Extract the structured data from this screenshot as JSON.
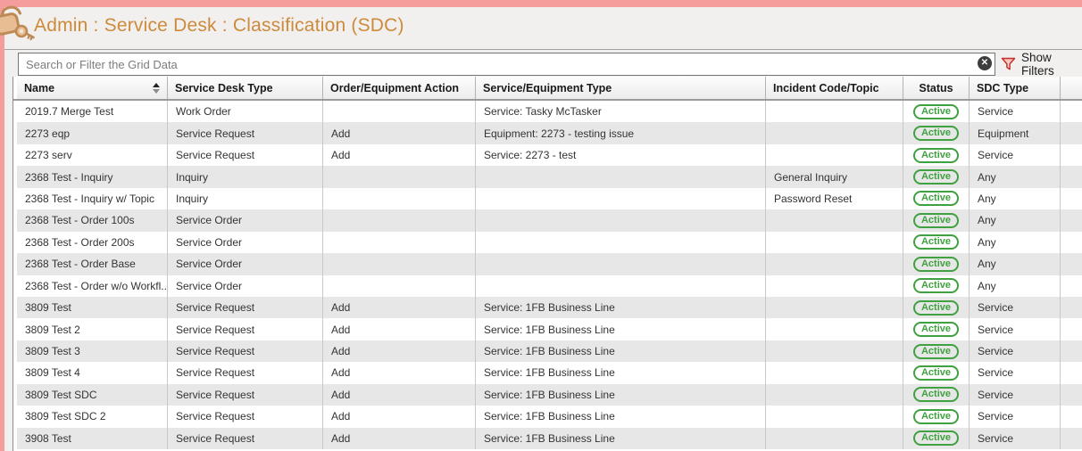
{
  "app": {
    "title": "Admin : Service Desk : Classification (SDC)"
  },
  "search": {
    "placeholder": "Search or Filter the Grid Data",
    "value": "",
    "clear_glyph": "✕",
    "show_filters_label": "Show Filters"
  },
  "table": {
    "columns": [
      {
        "key": "name",
        "label": "Name",
        "sorted": "asc"
      },
      {
        "key": "service_desk_type",
        "label": "Service Desk Type"
      },
      {
        "key": "order_equipment_action",
        "label": "Order/Equipment Action"
      },
      {
        "key": "service_equipment_type",
        "label": "Service/Equipment Type"
      },
      {
        "key": "incident_code_topic",
        "label": "Incident Code/Topic"
      },
      {
        "key": "status",
        "label": "Status"
      },
      {
        "key": "sdc_type",
        "label": "SDC Type"
      }
    ],
    "rows": [
      {
        "name": "2019.7 Merge Test",
        "service_desk_type": "Work Order",
        "order_equipment_action": "",
        "service_equipment_type": "Service: Tasky McTasker",
        "incident_code_topic": "",
        "status": "Active",
        "sdc_type": "Service"
      },
      {
        "name": "2273 eqp",
        "service_desk_type": "Service Request",
        "order_equipment_action": "Add",
        "service_equipment_type": "Equipment: 2273 - testing issue",
        "incident_code_topic": "",
        "status": "Active",
        "sdc_type": "Equipment"
      },
      {
        "name": "2273 serv",
        "service_desk_type": "Service Request",
        "order_equipment_action": "Add",
        "service_equipment_type": "Service: 2273 - test",
        "incident_code_topic": "",
        "status": "Active",
        "sdc_type": "Service"
      },
      {
        "name": "2368 Test - Inquiry",
        "service_desk_type": "Inquiry",
        "order_equipment_action": "",
        "service_equipment_type": "",
        "incident_code_topic": "General Inquiry",
        "status": "Active",
        "sdc_type": "Any"
      },
      {
        "name": "2368 Test - Inquiry w/ Topic",
        "service_desk_type": "Inquiry",
        "order_equipment_action": "",
        "service_equipment_type": "",
        "incident_code_topic": "Password Reset",
        "status": "Active",
        "sdc_type": "Any"
      },
      {
        "name": "2368 Test - Order 100s",
        "service_desk_type": "Service Order",
        "order_equipment_action": "",
        "service_equipment_type": "",
        "incident_code_topic": "",
        "status": "Active",
        "sdc_type": "Any"
      },
      {
        "name": "2368 Test - Order 200s",
        "service_desk_type": "Service Order",
        "order_equipment_action": "",
        "service_equipment_type": "",
        "incident_code_topic": "",
        "status": "Active",
        "sdc_type": "Any"
      },
      {
        "name": "2368 Test - Order Base",
        "service_desk_type": "Service Order",
        "order_equipment_action": "",
        "service_equipment_type": "",
        "incident_code_topic": "",
        "status": "Active",
        "sdc_type": "Any"
      },
      {
        "name": "2368 Test - Order w/o Workfl...",
        "service_desk_type": "Service Order",
        "order_equipment_action": "",
        "service_equipment_type": "",
        "incident_code_topic": "",
        "status": "Active",
        "sdc_type": "Any"
      },
      {
        "name": "3809 Test",
        "service_desk_type": "Service Request",
        "order_equipment_action": "Add",
        "service_equipment_type": "Service: 1FB Business Line",
        "incident_code_topic": "",
        "status": "Active",
        "sdc_type": "Service"
      },
      {
        "name": "3809 Test 2",
        "service_desk_type": "Service Request",
        "order_equipment_action": "Add",
        "service_equipment_type": "Service: 1FB Business Line",
        "incident_code_topic": "",
        "status": "Active",
        "sdc_type": "Service"
      },
      {
        "name": "3809 Test 3",
        "service_desk_type": "Service Request",
        "order_equipment_action": "Add",
        "service_equipment_type": "Service: 1FB Business Line",
        "incident_code_topic": "",
        "status": "Active",
        "sdc_type": "Service"
      },
      {
        "name": "3809 Test 4",
        "service_desk_type": "Service Request",
        "order_equipment_action": "Add",
        "service_equipment_type": "Service: 1FB Business Line",
        "incident_code_topic": "",
        "status": "Active",
        "sdc_type": "Service"
      },
      {
        "name": "3809 Test SDC",
        "service_desk_type": "Service Request",
        "order_equipment_action": "Add",
        "service_equipment_type": "Service: 1FB Business Line",
        "incident_code_topic": "",
        "status": "Active",
        "sdc_type": "Service"
      },
      {
        "name": "3809 Test SDC 2",
        "service_desk_type": "Service Request",
        "order_equipment_action": "Add",
        "service_equipment_type": "Service: 1FB Business Line",
        "incident_code_topic": "",
        "status": "Active",
        "sdc_type": "Service"
      },
      {
        "name": "3908 Test",
        "service_desk_type": "Service Request",
        "order_equipment_action": "Add",
        "service_equipment_type": "Service: 1FB Business Line",
        "incident_code_topic": "",
        "status": "Active",
        "sdc_type": "Service"
      }
    ]
  },
  "colors": {
    "accent_salmon": "#f59c9c",
    "title_orange": "#cd8a3b",
    "status_green": "#3fa13f",
    "filter_red": "#c5302a",
    "row_alt_gray": "#e7e7e7"
  }
}
